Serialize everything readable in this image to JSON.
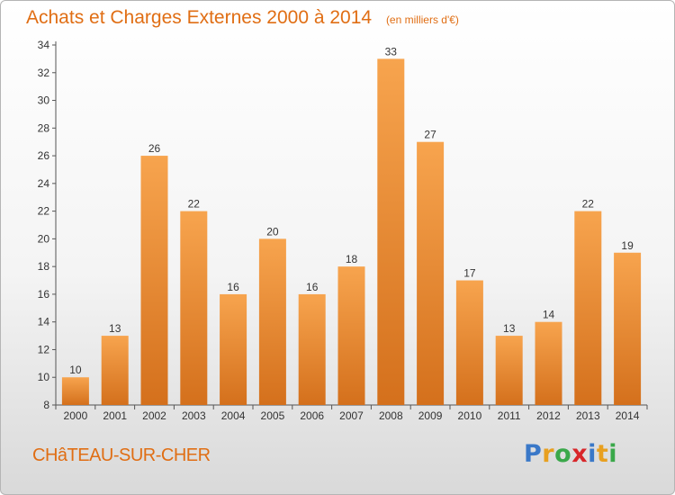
{
  "title": "Achats et Charges Externes 2000 à 2014",
  "unit": "(en milliers d'€)",
  "city": "CHâTEAU-SUR-CHER",
  "logo": {
    "letters": [
      "P",
      "r",
      "o",
      "x",
      "i",
      "t",
      "i"
    ],
    "colors": [
      "#3a78c8",
      "#e8a020",
      "#3aa84a",
      "#d8262a",
      "#3a78c8",
      "#e8a020",
      "#3aa84a"
    ]
  },
  "colors": {
    "bar_light": "#f7a44e",
    "bar_dark": "#d4701c",
    "text": "#e06e14"
  },
  "chart_data": {
    "type": "bar",
    "categories": [
      "2000",
      "2001",
      "2002",
      "2003",
      "2004",
      "2005",
      "2006",
      "2007",
      "2008",
      "2009",
      "2010",
      "2011",
      "2012",
      "2013",
      "2014"
    ],
    "values": [
      10,
      13,
      26,
      22,
      16,
      20,
      16,
      18,
      33,
      27,
      17,
      13,
      14,
      22,
      19
    ],
    "ylim": [
      8,
      34
    ],
    "yticks": [
      8,
      10,
      12,
      14,
      16,
      18,
      20,
      22,
      24,
      26,
      28,
      30,
      32,
      34
    ],
    "grid": false,
    "legend": "none"
  }
}
